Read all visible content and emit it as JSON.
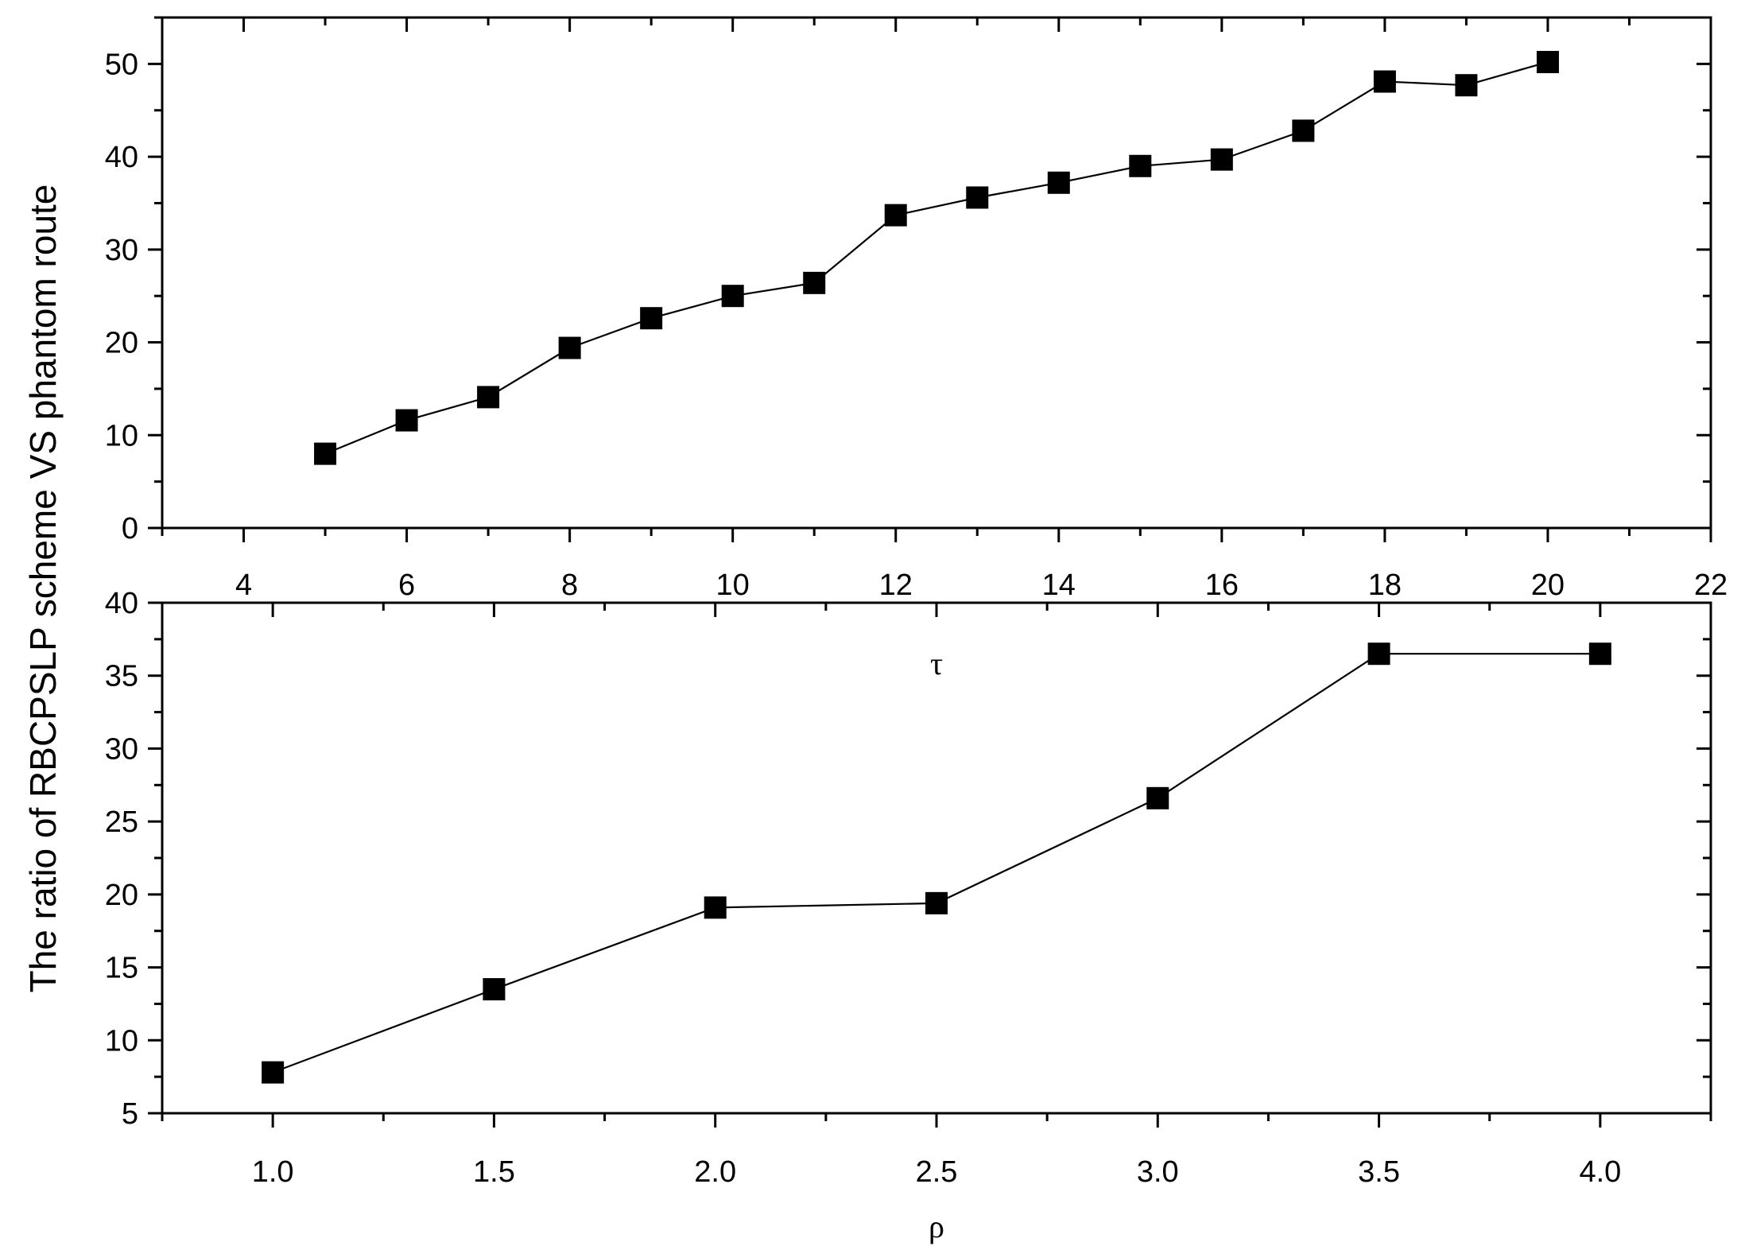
{
  "ylabel": "The ratio of   RBCPSLP scheme VS phantom route",
  "chart_data": [
    {
      "type": "line",
      "xlabel": "τ",
      "xlim": [
        3,
        22
      ],
      "ylim": [
        0,
        55
      ],
      "x_ticks": [
        4,
        6,
        8,
        10,
        12,
        14,
        16,
        18,
        20,
        22
      ],
      "y_ticks": [
        0,
        10,
        20,
        30,
        40,
        50
      ],
      "grid": false,
      "marker": "square",
      "series": [
        {
          "x": [
            5,
            6,
            7,
            8,
            9,
            10,
            11,
            12,
            13,
            14,
            15,
            16,
            17,
            18,
            19,
            20
          ],
          "values": [
            8,
            11.6,
            14.1,
            19.4,
            22.6,
            25,
            26.4,
            33.7,
            35.6,
            37.2,
            39,
            39.7,
            42.8,
            48.1,
            47.7,
            50.2
          ]
        }
      ]
    },
    {
      "type": "line",
      "xlabel": "ρ",
      "xlim": [
        0.75,
        4.25
      ],
      "ylim": [
        5,
        40
      ],
      "x_ticks": [
        1.0,
        1.5,
        2.0,
        2.5,
        3.0,
        3.5,
        4.0
      ],
      "y_ticks": [
        5,
        10,
        15,
        20,
        25,
        30,
        35,
        40
      ],
      "grid": false,
      "marker": "square",
      "series": [
        {
          "x": [
            1.0,
            1.5,
            2.0,
            2.5,
            3.0,
            3.5,
            4.0
          ],
          "values": [
            7.8,
            13.5,
            19.1,
            19.4,
            26.6,
            36.5,
            36.5
          ]
        }
      ]
    }
  ]
}
